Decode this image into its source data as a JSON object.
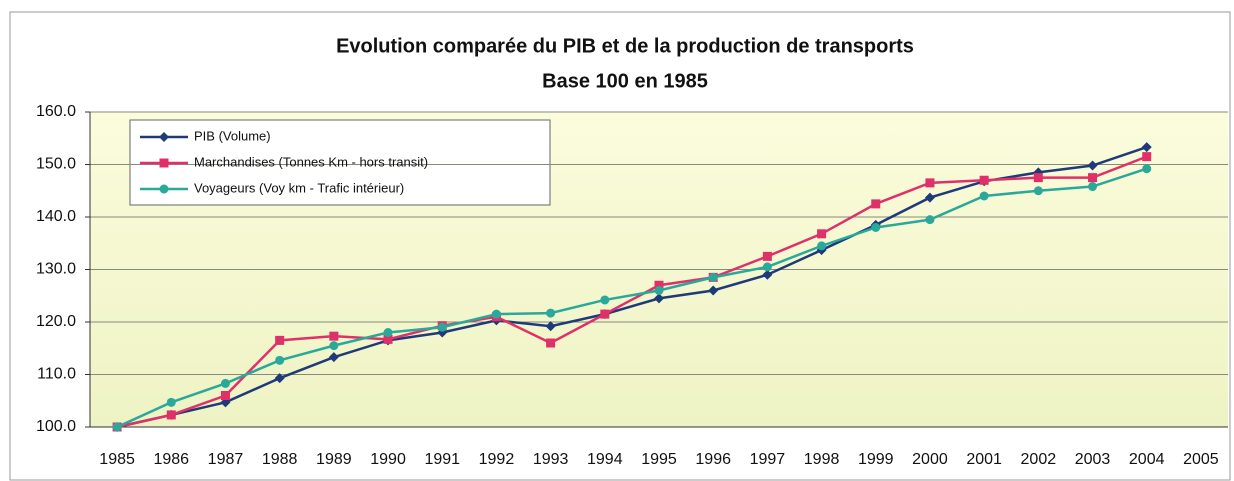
{
  "chart_data": {
    "type": "line",
    "title": "Evolution comparée du PIB et de la production de transports",
    "subtitle": "Base 100 en 1985",
    "categories": [
      "1985",
      "1986",
      "1987",
      "1988",
      "1989",
      "1990",
      "1991",
      "1992",
      "1993",
      "1994",
      "1995",
      "1996",
      "1997",
      "1998",
      "1999",
      "2000",
      "2001",
      "2002",
      "2003",
      "2004",
      "2005"
    ],
    "series": [
      {
        "name": "PIB (Volume)",
        "color": "#1f3a78",
        "marker": "diamond",
        "values": [
          100,
          102.3,
          104.7,
          109.3,
          113.3,
          116.5,
          118,
          120.3,
          119.2,
          121.5,
          124.5,
          126,
          129,
          133.7,
          138.5,
          143.7,
          146.8,
          148.5,
          149.8,
          153.3,
          null
        ]
      },
      {
        "name": "Marchandises (Tonnes Km - hors transit)",
        "color": "#e0306a",
        "marker": "square",
        "values": [
          100,
          102.3,
          106,
          116.5,
          117.3,
          116.7,
          119.3,
          121,
          116,
          121.5,
          127,
          128.5,
          132.5,
          136.8,
          142.5,
          146.5,
          147,
          147.5,
          147.5,
          151.5,
          null
        ]
      },
      {
        "name": "Voyageurs (Voy km - Trafic intérieur)",
        "color": "#2aa89a",
        "marker": "circle",
        "values": [
          100,
          104.7,
          108.3,
          112.7,
          115.5,
          118,
          119,
          121.5,
          121.7,
          124.2,
          126,
          128.5,
          130.5,
          134.5,
          138,
          139.5,
          144,
          145,
          145.8,
          149.2,
          null
        ]
      }
    ],
    "ylim": [
      100,
      160
    ],
    "yticks": [
      {
        "value": 100,
        "label": "100.0"
      },
      {
        "value": 110,
        "label": "110.0"
      },
      {
        "value": 120,
        "label": "120.0"
      },
      {
        "value": 130,
        "label": "130.0"
      },
      {
        "value": 140,
        "label": "140.0"
      },
      {
        "value": 150,
        "label": "150.0"
      },
      {
        "value": 160,
        "label": "160.0"
      }
    ],
    "grid": true,
    "legend": "top-left"
  }
}
